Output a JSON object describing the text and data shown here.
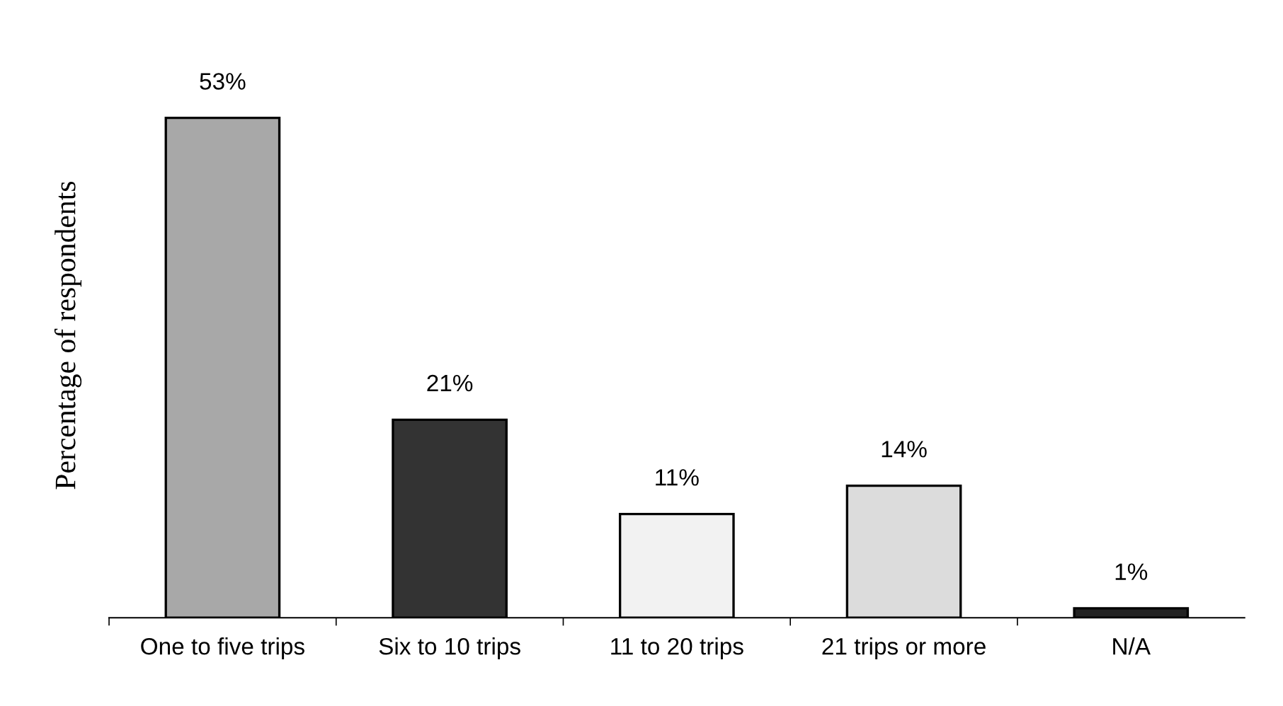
{
  "chart_data": {
    "type": "bar",
    "ylabel": "Percentage of respondents",
    "categories": [
      "One to five trips",
      "Six to 10 trips",
      "11 to 20 trips",
      "21 trips or more",
      "N/A"
    ],
    "values": [
      53,
      21,
      11,
      14,
      1
    ],
    "colors": [
      "#a8a8a8",
      "#333333",
      "#f2f2f2",
      "#dcdcdc",
      "#222222"
    ],
    "value_labels": [
      "53%",
      "21%",
      "11%",
      "14%",
      "1%"
    ],
    "grid": false,
    "legend": false
  }
}
